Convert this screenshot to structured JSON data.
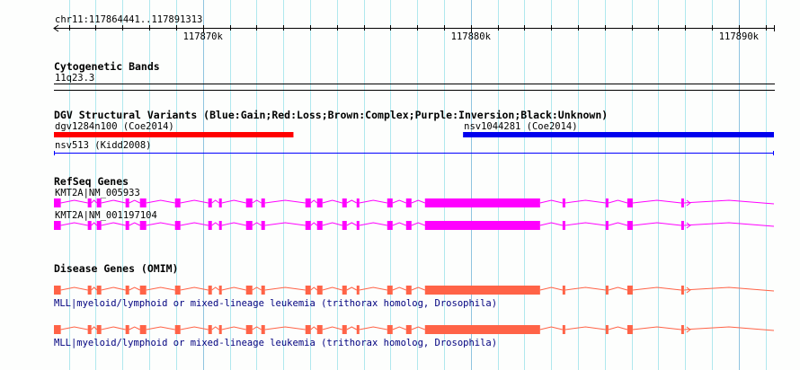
{
  "region": {
    "label": "chr11:117864441..117891313",
    "start": 117864441,
    "end": 117891313
  },
  "ruler": {
    "major_ticks": [
      {
        "pos": 117870000,
        "label": "117870k"
      },
      {
        "pos": 117880000,
        "label": "117880k"
      },
      {
        "pos": 117890000,
        "label": "117890k"
      }
    ],
    "minor_step": 1000
  },
  "tracks": {
    "cyto": {
      "title": "Cytogenetic Bands",
      "band": "11q23.3"
    },
    "dgv": {
      "title": "DGV Structural Variants (Blue:Gain;Red:Loss;Brown:Complex;Purple:Inversion;Black:Unknown)",
      "features": [
        {
          "label": "dgv1284n100 (Coe2014)",
          "start": 117864441,
          "end": 117873380,
          "color": "#ff0000",
          "style": "bar"
        },
        {
          "label": "nsv1044281 (Coe2014)",
          "start": 117879710,
          "end": 117891313,
          "color": "#0000ee",
          "style": "bar"
        },
        {
          "label": "nsv513 (Kidd2008)",
          "start": 117864441,
          "end": 117891313,
          "color": "#0000ff",
          "style": "line"
        }
      ]
    },
    "refseq": {
      "title": "RefSeq Genes",
      "color": "#ff00ff",
      "genes": [
        {
          "label": "KMT2A|NM_005933"
        },
        {
          "label": "KMT2A|NM_001197104"
        }
      ]
    },
    "omim": {
      "title": "Disease Genes (OMIM)",
      "color": "#ff6347",
      "genes": [
        {
          "label": "MLL|myeloid/lymphoid or mixed-lineage leukemia (trithorax homolog, Drosophila)"
        },
        {
          "label": "MLL|myeloid/lymphoid or mixed-lineage leukemia (trithorax homolog, Drosophila)"
        }
      ]
    }
  },
  "gene_model": {
    "start": 117864441,
    "end": 117891313,
    "exons": [
      [
        117864441,
        117864697
      ],
      [
        117865704,
        117865839
      ],
      [
        117866040,
        117866208
      ],
      [
        117867114,
        117867248
      ],
      [
        117867651,
        117867886
      ],
      [
        117868960,
        117869161
      ],
      [
        117870201,
        117870336
      ],
      [
        117870604,
        117870705
      ],
      [
        117871611,
        117871846
      ],
      [
        117872181,
        117872316
      ],
      [
        117873826,
        117874027
      ],
      [
        117874262,
        117874463
      ],
      [
        117875202,
        117875370
      ],
      [
        117875739,
        117875839
      ],
      [
        117876880,
        117877081
      ],
      [
        117877584,
        117877786
      ],
      [
        117878289,
        117882585
      ],
      [
        117883424,
        117883525
      ],
      [
        117885035,
        117885136
      ],
      [
        117885841,
        117886042
      ],
      [
        117887854,
        117887955
      ]
    ]
  }
}
